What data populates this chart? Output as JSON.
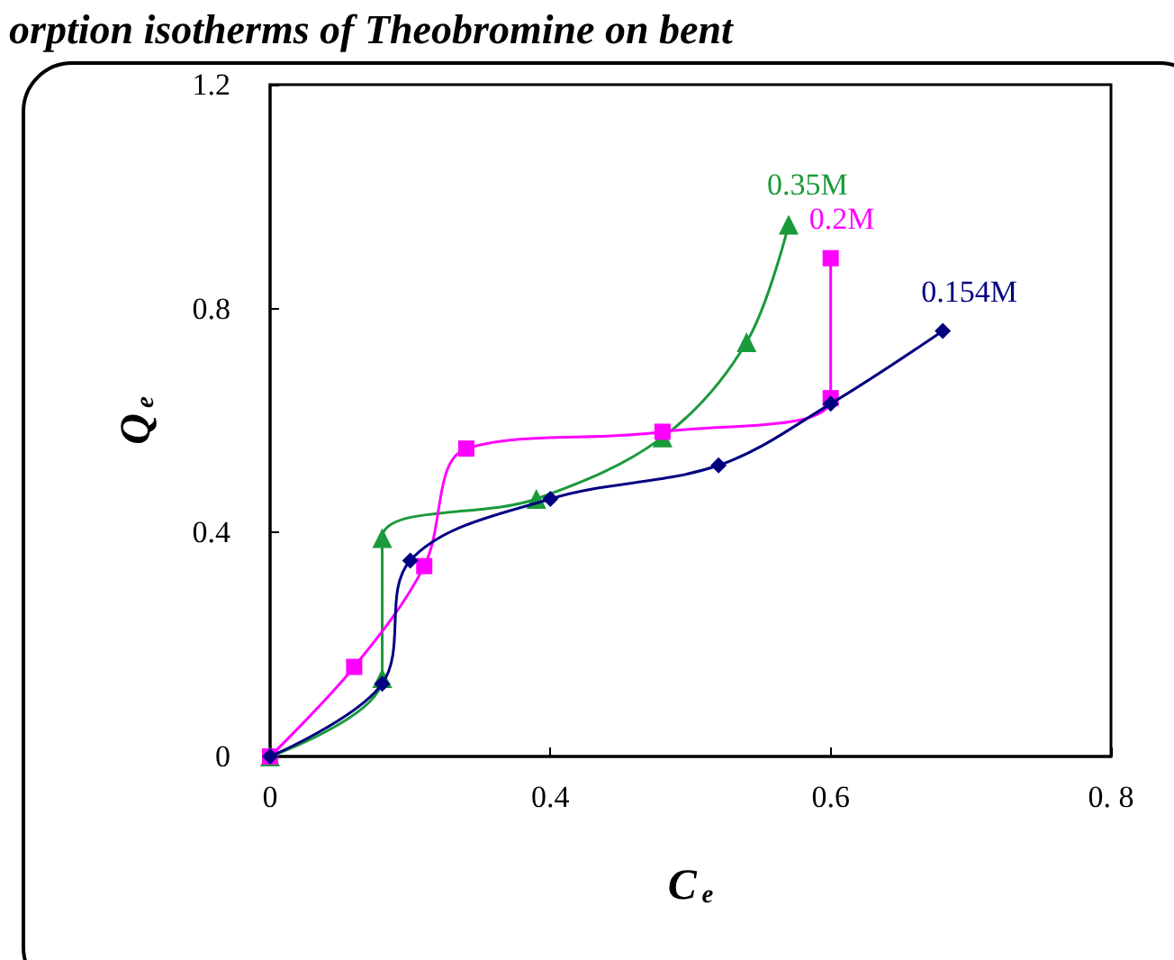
{
  "chart_data": {
    "type": "line",
    "title": "orption isotherms of Theobromine on bent",
    "xlabel": "C$_{e}$",
    "ylabel": "Q$_{e}$",
    "xlim": [
      0.2,
      0.8
    ],
    "xticks": [
      {
        "value": 0.2,
        "label": "0"
      },
      0.4,
      0.6,
      {
        "value": 0.8,
        "label": "0. 8"
      }
    ],
    "ylim": [
      0,
      1.2
    ],
    "yticks": [
      0,
      0.4,
      0.8,
      1.2
    ],
    "grid": false,
    "legend": false,
    "line_style": "solid",
    "series": [
      {
        "name": "0.154M",
        "color": "#000080",
        "marker": "diamond",
        "x": [
          0.2,
          0.28,
          0.3,
          0.4,
          0.52,
          0.6,
          0.68
        ],
        "values": [
          0,
          0.13,
          0.35,
          0.46,
          0.52,
          0.63,
          0.76
        ]
      },
      {
        "name": "0.2M",
        "color": "#ff00ff",
        "marker": "square",
        "x": [
          0.2,
          0.26,
          0.31,
          0.34,
          0.48,
          0.6,
          0.6
        ],
        "values": [
          0,
          0.16,
          0.34,
          0.55,
          0.58,
          0.64,
          0.89
        ]
      },
      {
        "name": "0.35M",
        "color": "#1a9a3a",
        "marker": "triangle",
        "x": [
          0.2,
          0.28,
          0.28,
          0.39,
          0.48,
          0.54,
          0.57
        ],
        "values": [
          0,
          0.14,
          0.39,
          0.46,
          0.57,
          0.74,
          0.95
        ]
      }
    ]
  }
}
